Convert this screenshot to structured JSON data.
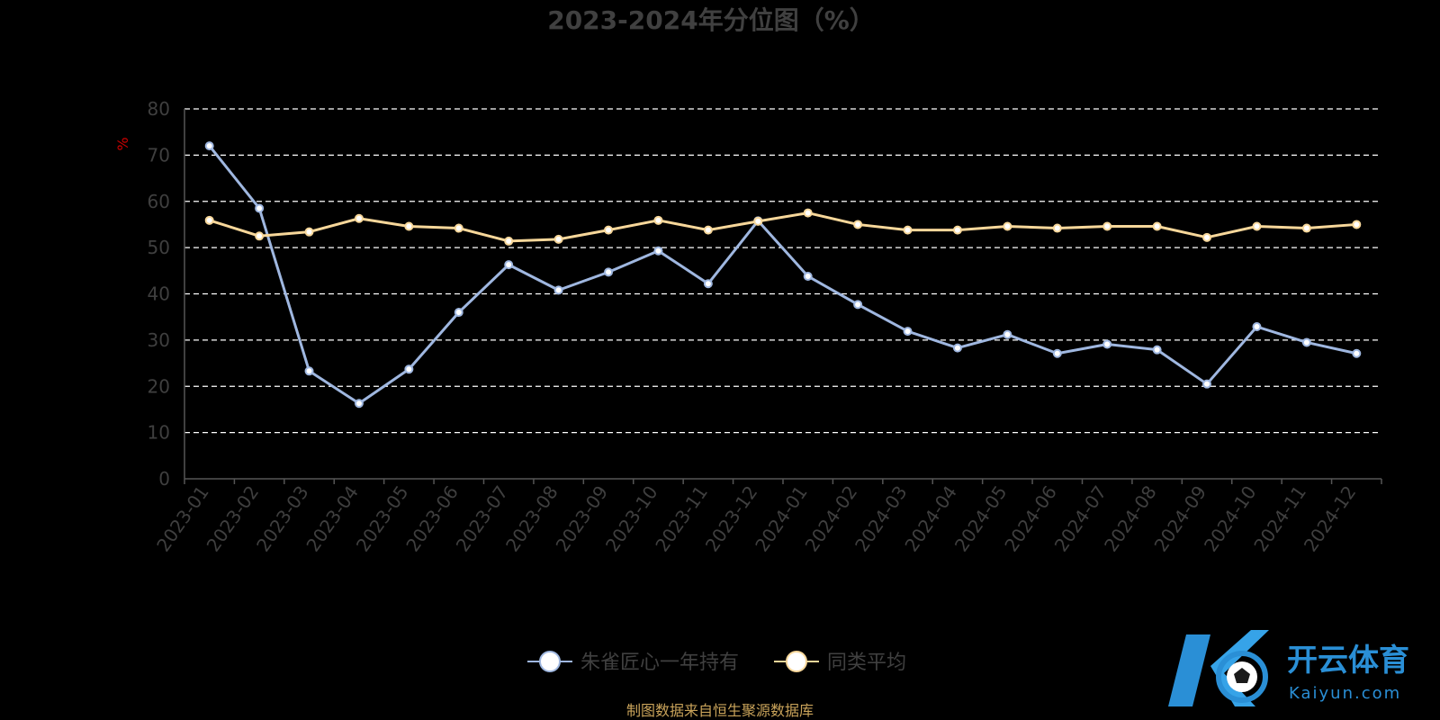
{
  "chart_data": {
    "type": "line",
    "title": "2023-2024年分位图（%）",
    "ylabel": "%",
    "ylim": [
      0,
      80
    ],
    "yticks": [
      0,
      10,
      20,
      30,
      40,
      50,
      60,
      70,
      80
    ],
    "grid": true,
    "legend_position": "bottom-center",
    "categories": [
      "2023-01",
      "2023-02",
      "2023-03",
      "2023-04",
      "2023-05",
      "2023-06",
      "2023-07",
      "2023-08",
      "2023-09",
      "2023-10",
      "2023-11",
      "2023-12",
      "2024-01",
      "2024-02",
      "2024-03",
      "2024-04",
      "2024-05",
      "2024-06",
      "2024-07",
      "2024-08",
      "2024-09",
      "2024-10",
      "2024-11",
      "2024-12"
    ],
    "series": [
      {
        "name": "朱雀匠心一年持有",
        "color": "#9fb7e0",
        "values": [
          72,
          58.5,
          23.3,
          16.3,
          23.7,
          36,
          46.3,
          40.8,
          44.7,
          49.3,
          42.2,
          55.8,
          43.8,
          37.7,
          31.9,
          28.3,
          31.2,
          27.1,
          29.1,
          27.9,
          20.5,
          32.9,
          29.5,
          27.1
        ]
      },
      {
        "name": "同类平均",
        "color": "#f7d79a",
        "values": [
          55.9,
          52.5,
          53.4,
          56.3,
          54.6,
          54.2,
          51.4,
          51.8,
          53.8,
          55.9,
          53.8,
          55.7,
          57.5,
          55.0,
          53.8,
          53.8,
          54.6,
          54.2,
          54.6,
          54.6,
          52.2,
          54.6,
          54.2,
          55.0
        ]
      }
    ]
  },
  "footer": {
    "source": "制图数据来自恒生聚源数据库"
  },
  "watermark": {
    "brand_cn": "开云体育",
    "brand_en": "Kaiyun.com",
    "logo_letter": "K"
  }
}
